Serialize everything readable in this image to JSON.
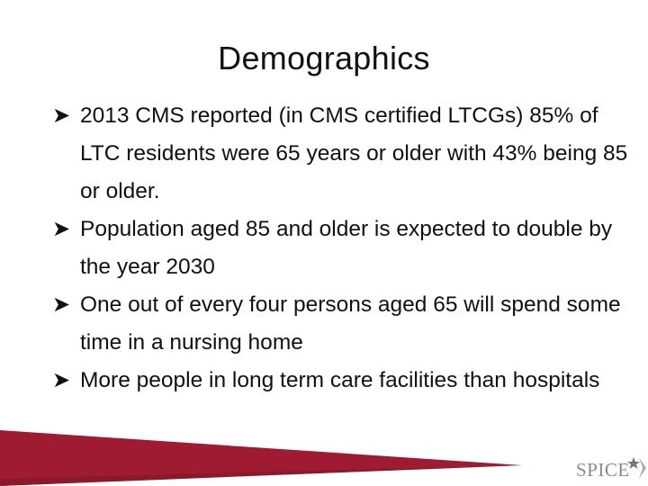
{
  "slide": {
    "title": "Demographics",
    "bullets": [
      {
        "text": "2013 CMS reported (in CMS certified LTCGs) 85% of LTC residents were 65 years or older with  43% being 85 or older."
      },
      {
        "text": "Population aged 85 and older is expected to double by the year 2030"
      },
      {
        "text": "One out of every four persons aged 65 will spend some time in a nursing home"
      },
      {
        "text": "More people in long term care facilities than hospitals"
      }
    ],
    "bullet_icon": "arrow-bullet-icon",
    "logo_text": "SPICE"
  },
  "colors": {
    "accent": "#9e1b32",
    "text": "#111111",
    "logo_text": "#8a8a8a"
  }
}
